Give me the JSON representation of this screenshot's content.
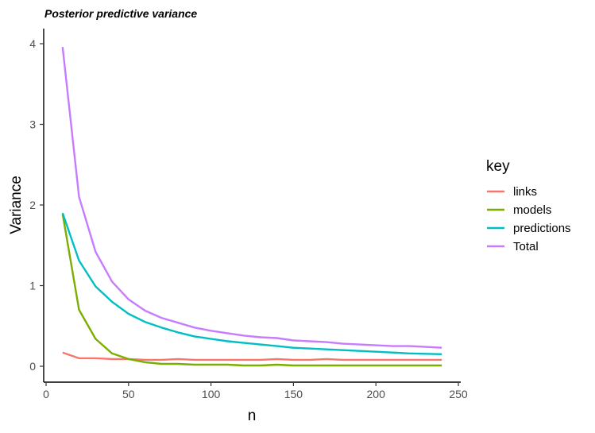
{
  "chart_data": {
    "type": "line",
    "title": "Posterior predictive variance",
    "xlabel": "n",
    "ylabel": "Variance",
    "xlim": [
      0,
      250
    ],
    "ylim": [
      -0.2,
      4.15
    ],
    "x_ticks": [
      0,
      50,
      100,
      150,
      200,
      250
    ],
    "y_ticks": [
      0,
      1,
      2,
      3,
      4
    ],
    "grid": false,
    "legend_title": "key",
    "legend_position": "right",
    "x": [
      10,
      20,
      30,
      40,
      50,
      60,
      70,
      80,
      90,
      100,
      110,
      120,
      130,
      140,
      150,
      160,
      170,
      180,
      190,
      200,
      210,
      220,
      230,
      240
    ],
    "series": [
      {
        "name": "links",
        "color": "#F8766D",
        "values": [
          0.17,
          0.1,
          0.1,
          0.09,
          0.09,
          0.08,
          0.08,
          0.09,
          0.08,
          0.08,
          0.08,
          0.08,
          0.08,
          0.09,
          0.08,
          0.08,
          0.09,
          0.08,
          0.08,
          0.08,
          0.08,
          0.08,
          0.08,
          0.08
        ]
      },
      {
        "name": "models",
        "color": "#7CAE00",
        "values": [
          1.89,
          0.7,
          0.34,
          0.16,
          0.09,
          0.05,
          0.03,
          0.03,
          0.02,
          0.02,
          0.02,
          0.01,
          0.01,
          0.02,
          0.01,
          0.01,
          0.01,
          0.01,
          0.01,
          0.01,
          0.01,
          0.01,
          0.01,
          0.01
        ]
      },
      {
        "name": "predictions",
        "color": "#00BFC4",
        "values": [
          1.9,
          1.31,
          0.99,
          0.8,
          0.65,
          0.55,
          0.48,
          0.42,
          0.37,
          0.34,
          0.31,
          0.29,
          0.27,
          0.25,
          0.23,
          0.22,
          0.21,
          0.2,
          0.19,
          0.18,
          0.17,
          0.16,
          0.155,
          0.15
        ]
      },
      {
        "name": "Total",
        "color": "#C77CFF",
        "values": [
          3.96,
          2.1,
          1.42,
          1.05,
          0.83,
          0.69,
          0.6,
          0.54,
          0.48,
          0.44,
          0.41,
          0.38,
          0.36,
          0.35,
          0.32,
          0.31,
          0.3,
          0.28,
          0.27,
          0.26,
          0.25,
          0.25,
          0.24,
          0.23
        ]
      }
    ]
  }
}
